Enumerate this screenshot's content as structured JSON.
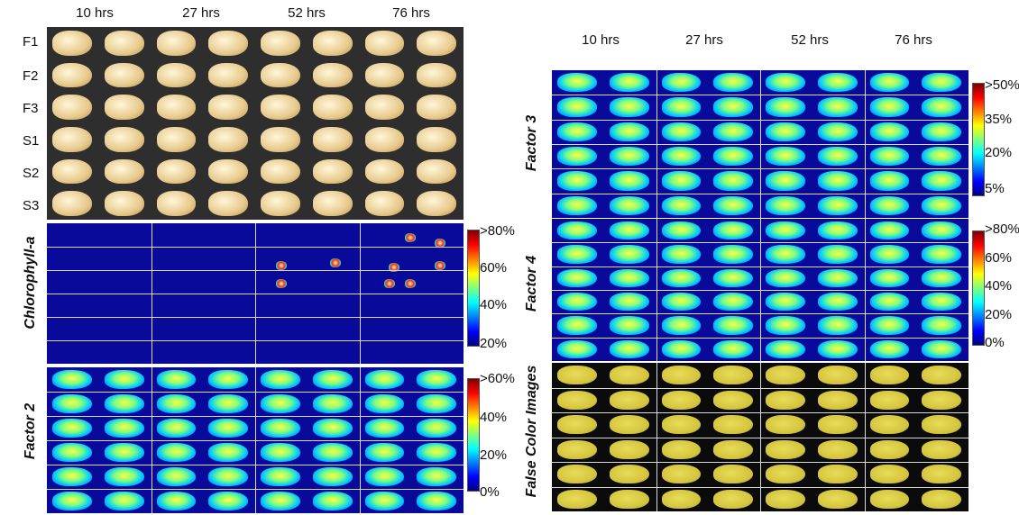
{
  "left": {
    "time_headers": [
      "10 hrs",
      "27 hrs",
      "52 hrs",
      "76 hrs"
    ],
    "sample_rows": [
      "F1",
      "F2",
      "F3",
      "S1",
      "S2",
      "S3"
    ],
    "panels": [
      {
        "label": "",
        "type": "photo"
      },
      {
        "label": "Chlorophyll-a",
        "type": "chlorophyll",
        "colorbar_ticks": [
          ">80%",
          "60%",
          "40%",
          "20%"
        ]
      },
      {
        "label": "Factor 2",
        "type": "factor",
        "colorbar_ticks": [
          ">60%",
          "40%",
          "20%",
          "0%"
        ]
      }
    ]
  },
  "right": {
    "time_headers": [
      "10 hrs",
      "27 hrs",
      "52 hrs",
      "76 hrs"
    ],
    "panels": [
      {
        "label": "Factor 3",
        "type": "factor",
        "colorbar_ticks": [
          ">50%",
          "35%",
          "20%",
          "5%"
        ]
      },
      {
        "label": "Factor 4",
        "type": "factor",
        "colorbar_ticks": [
          ">80%",
          "60%",
          "40%",
          "20%",
          "0%"
        ]
      },
      {
        "label": "False Color Images",
        "type": "falsecolor"
      }
    ]
  },
  "colors": {
    "photo_bg": "#2e2e2e",
    "heatmap_bg": "#0a0a9a",
    "kernel_hot": "#e8ff3a",
    "falsecolor_bg": "#0b0b0b",
    "kernel_photo": "#e7c98c",
    "kernel_false": "#d4c43c"
  }
}
